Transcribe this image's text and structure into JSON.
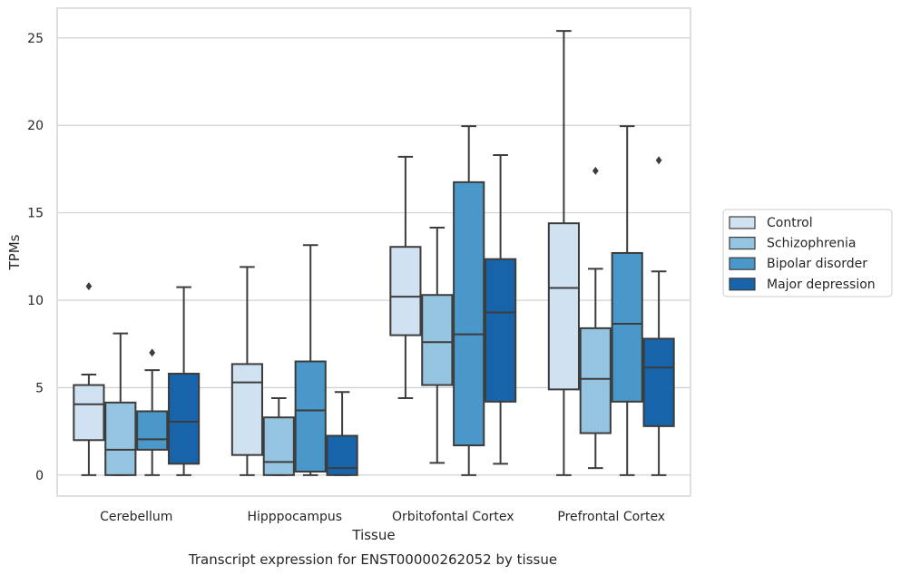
{
  "chart_data": {
    "type": "box",
    "xlabel": "Tissue",
    "ylabel": "TPMs",
    "caption": "Transcript expression for ENST00000262052 by tissue",
    "ylim": [
      -1.2,
      26.7
    ],
    "yticks": [
      0,
      5,
      10,
      15,
      20,
      25
    ],
    "grid": "horizontal",
    "legend_position": "right",
    "categories": [
      "Cerebellum",
      "Hipppocampus",
      "Orbitofontal Cortex",
      "Prefrontal Cortex"
    ],
    "series": [
      {
        "name": "Control",
        "color": "#d0e1f2",
        "boxes": [
          {
            "whislo": 0,
            "q1": 2.0,
            "median": 4.05,
            "q3": 5.15,
            "whishi": 5.75,
            "fliers": [
              10.8
            ]
          },
          {
            "whislo": 0,
            "q1": 1.15,
            "median": 5.3,
            "q3": 6.35,
            "whishi": 11.9,
            "fliers": []
          },
          {
            "whislo": 4.4,
            "q1": 8.0,
            "median": 10.2,
            "q3": 13.05,
            "whishi": 18.2,
            "fliers": []
          },
          {
            "whislo": 0,
            "q1": 4.9,
            "median": 10.7,
            "q3": 14.4,
            "whishi": 25.4,
            "fliers": []
          }
        ]
      },
      {
        "name": "Schizophrenia",
        "color": "#94c4df",
        "boxes": [
          {
            "whislo": 0,
            "q1": 0,
            "median": 1.45,
            "q3": 4.15,
            "whishi": 8.1,
            "fliers": []
          },
          {
            "whislo": 0,
            "q1": 0,
            "median": 0.75,
            "q3": 3.3,
            "whishi": 4.4,
            "fliers": []
          },
          {
            "whislo": 0.7,
            "q1": 5.15,
            "median": 7.6,
            "q3": 10.3,
            "whishi": 14.15,
            "fliers": []
          },
          {
            "whislo": 0.4,
            "q1": 2.4,
            "median": 5.5,
            "q3": 8.4,
            "whishi": 11.8,
            "fliers": [
              17.4
            ]
          }
        ]
      },
      {
        "name": "Bipolar disorder",
        "color": "#4a98c9",
        "boxes": [
          {
            "whislo": 0,
            "q1": 1.45,
            "median": 2.05,
            "q3": 3.65,
            "whishi": 6.0,
            "fliers": [
              7.0
            ]
          },
          {
            "whislo": 0,
            "q1": 0.2,
            "median": 3.7,
            "q3": 6.5,
            "whishi": 13.15,
            "fliers": []
          },
          {
            "whislo": 0,
            "q1": 1.7,
            "median": 8.05,
            "q3": 16.75,
            "whishi": 19.95,
            "fliers": []
          },
          {
            "whislo": 0,
            "q1": 4.2,
            "median": 8.65,
            "q3": 12.7,
            "whishi": 19.95,
            "fliers": []
          }
        ]
      },
      {
        "name": "Major depression",
        "color": "#1764ab",
        "boxes": [
          {
            "whislo": 0,
            "q1": 0.65,
            "median": 3.05,
            "q3": 5.8,
            "whishi": 10.75,
            "fliers": []
          },
          {
            "whislo": 0,
            "q1": 0,
            "median": 0.4,
            "q3": 2.25,
            "whishi": 4.75,
            "fliers": []
          },
          {
            "whislo": 0.65,
            "q1": 4.2,
            "median": 9.3,
            "q3": 12.35,
            "whishi": 18.3,
            "fliers": []
          },
          {
            "whislo": 0,
            "q1": 2.8,
            "median": 6.15,
            "q3": 7.8,
            "whishi": 11.65,
            "fliers": [
              18.0
            ]
          }
        ]
      }
    ]
  }
}
